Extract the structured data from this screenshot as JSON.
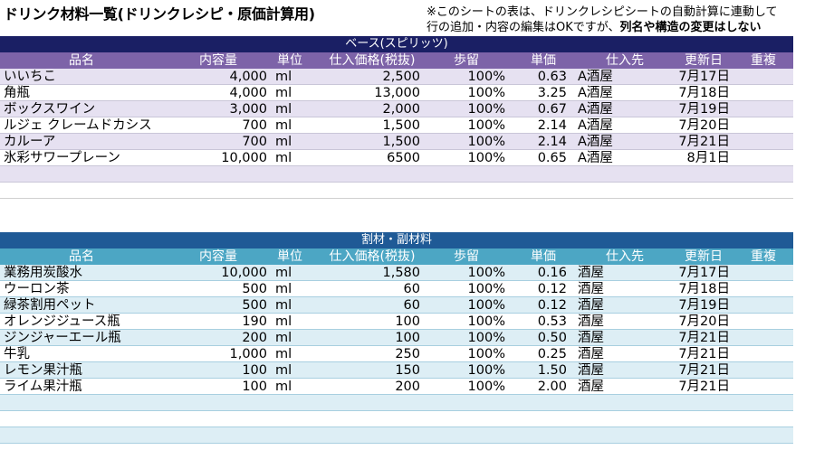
{
  "title": "ドリンク材料一覧(ドリンクレシピ・原価計算用)",
  "note": {
    "line1": "※このシートの表は、ドリンクレシピシートの自動計算に連動して",
    "line2_normal": "行の追加・内容の編集はOKですが、",
    "line2_bold": "列名や構造の変更はしない"
  },
  "colors": {
    "table1_band": "#1a1f64",
    "table1_header": "#7d63a8",
    "table1_stripe": "#e6e1f1",
    "table2_band": "#1f5a96",
    "table2_header": "#4ca6c4",
    "table2_stripe": "#ddeef5"
  },
  "headers": [
    "品名",
    "内容量",
    "単位",
    "仕入価格(税抜)",
    "歩留",
    "単価",
    "仕入先",
    "更新日",
    "重複"
  ],
  "table1": {
    "band": "ベース(スピリッツ)",
    "rows": [
      [
        "いいちこ",
        "4,000",
        "ml",
        "2,500",
        "100%",
        "0.63",
        "A酒屋",
        "7月17日",
        ""
      ],
      [
        "角瓶",
        "4,000",
        "ml",
        "13,000",
        "100%",
        "3.25",
        "A酒屋",
        "7月18日",
        ""
      ],
      [
        "ボックスワイン",
        "3,000",
        "ml",
        "2,000",
        "100%",
        "0.67",
        "A酒屋",
        "7月19日",
        ""
      ],
      [
        "ルジェ クレームドカシス",
        "700",
        "ml",
        "1,500",
        "100%",
        "2.14",
        "A酒屋",
        "7月20日",
        ""
      ],
      [
        "カルーア",
        "700",
        "ml",
        "1,500",
        "100%",
        "2.14",
        "A酒屋",
        "7月21日",
        ""
      ],
      [
        "氷彩サワープレーン",
        "10,000",
        "ml",
        "6500",
        "100%",
        "0.65",
        "A酒屋",
        "8月1日",
        ""
      ],
      [
        "",
        "",
        "",
        "",
        "",
        "",
        "",
        "",
        ""
      ]
    ]
  },
  "table2": {
    "band": "割材・副材料",
    "rows": [
      [
        "業務用炭酸水",
        "10,000",
        "ml",
        "1,580",
        "100%",
        "0.16",
        "酒屋",
        "7月17日",
        ""
      ],
      [
        "ウーロン茶",
        "500",
        "ml",
        "60",
        "100%",
        "0.12",
        "酒屋",
        "7月18日",
        ""
      ],
      [
        "緑茶割用ペット",
        "500",
        "ml",
        "60",
        "100%",
        "0.12",
        "酒屋",
        "7月19日",
        ""
      ],
      [
        "オレンジジュース瓶",
        "190",
        "ml",
        "100",
        "100%",
        "0.53",
        "酒屋",
        "7月20日",
        ""
      ],
      [
        "ジンジャーエール瓶",
        "200",
        "ml",
        "100",
        "100%",
        "0.50",
        "酒屋",
        "7月21日",
        ""
      ],
      [
        "牛乳",
        "1,000",
        "ml",
        "250",
        "100%",
        "0.25",
        "酒屋",
        "7月21日",
        ""
      ],
      [
        "レモン果汁瓶",
        "100",
        "ml",
        "150",
        "100%",
        "1.50",
        "酒屋",
        "7月21日",
        ""
      ],
      [
        "ライム果汁瓶",
        "100",
        "ml",
        "200",
        "100%",
        "2.00",
        "酒屋",
        "7月21日",
        ""
      ],
      [
        "",
        "",
        "",
        "",
        "",
        "",
        "",
        "",
        ""
      ],
      [
        "",
        "",
        "",
        "",
        "",
        "",
        "",
        "",
        ""
      ],
      [
        "",
        "",
        "",
        "",
        "",
        "",
        "",
        "",
        ""
      ]
    ]
  }
}
